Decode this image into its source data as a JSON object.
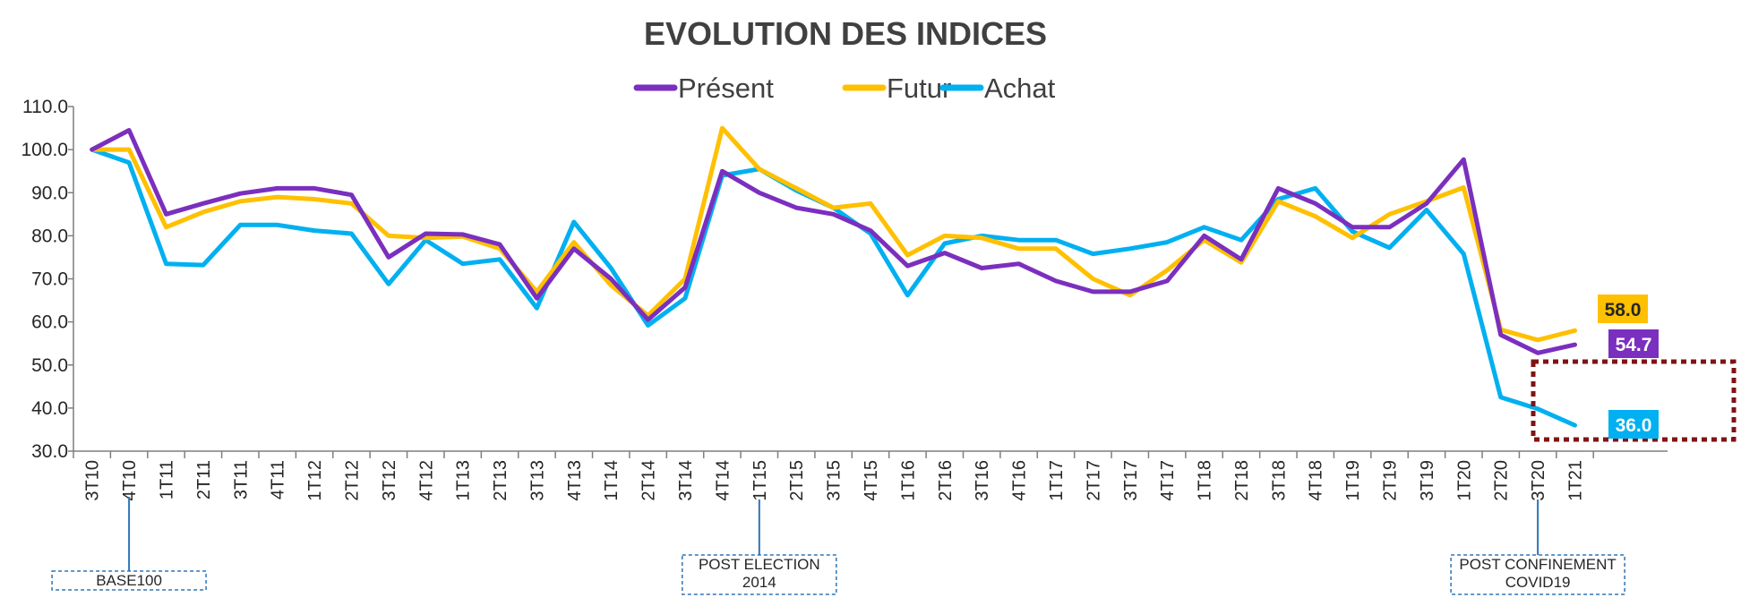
{
  "chart_data": {
    "type": "line",
    "title": "EVOLUTION DES INDICES",
    "xlabel": "",
    "ylabel": "",
    "ylim": [
      30,
      110
    ],
    "yticks": [
      "30.0",
      "40.0",
      "50.0",
      "60.0",
      "70.0",
      "80.0",
      "90.0",
      "100.0",
      "110.0"
    ],
    "categories": [
      "3T10",
      "4T10",
      "1T11",
      "2T11",
      "3T11",
      "4T11",
      "1T12",
      "2T12",
      "3T12",
      "4T12",
      "1T13",
      "2T13",
      "3T13",
      "4T13",
      "1T14",
      "2T14",
      "3T14",
      "4T14",
      "1T15",
      "2T15",
      "3T15",
      "4T15",
      "1T16",
      "2T16",
      "3T16",
      "4T16",
      "1T17",
      "2T17",
      "3T17",
      "4T17",
      "1T18",
      "2T18",
      "3T18",
      "4T18",
      "1T19",
      "2T19",
      "3T19",
      "1T20",
      "2T20",
      "3T20",
      "1T21"
    ],
    "legend_position": "top-center",
    "series": [
      {
        "name": "Présent",
        "color": "#7B2FBE",
        "values": [
          100,
          104.5,
          85,
          87.5,
          89.8,
          91,
          91,
          89.5,
          75,
          80.5,
          80.3,
          78,
          65.5,
          77,
          70,
          60.5,
          68,
          95,
          90,
          86.5,
          85,
          81.2,
          73,
          76,
          72.5,
          73.5,
          69.5,
          67,
          67,
          69.5,
          80,
          74.5,
          91,
          87.5,
          82,
          82,
          87.5,
          97.7,
          57,
          52.8,
          54.7
        ]
      },
      {
        "name": "Futur",
        "color": "#FFC000",
        "values": [
          100,
          100,
          82,
          85.5,
          88,
          89,
          88.5,
          87.5,
          80,
          79.5,
          79.8,
          77,
          67,
          78.5,
          68.5,
          61.5,
          70,
          105,
          95.5,
          91,
          86.5,
          87.5,
          75.5,
          80,
          79.5,
          77,
          77,
          70,
          66.2,
          72,
          79,
          73.8,
          88,
          84.5,
          79.5,
          85,
          88,
          91.2,
          58.2,
          55.8,
          58
        ]
      },
      {
        "name": "Achat",
        "color": "#00B0F0",
        "values": [
          100,
          97,
          73.5,
          73.2,
          82.5,
          82.5,
          81.2,
          80.5,
          68.8,
          79,
          73.5,
          74.5,
          63.2,
          83.2,
          72.5,
          59.2,
          65.5,
          94,
          95.5,
          90.5,
          86.5,
          80.5,
          66.2,
          78.2,
          80,
          79,
          79,
          75.8,
          77,
          78.5,
          82,
          79,
          88.5,
          91,
          81,
          77.2,
          86,
          75.8,
          42.5,
          39.8,
          36
        ]
      }
    ],
    "end_labels": [
      {
        "series": "Futur",
        "text": "58.0",
        "bg": "#FFC000",
        "fg": "#262626"
      },
      {
        "series": "Présent",
        "text": "54.7",
        "bg": "#7B2FBE",
        "fg": "#ffffff"
      },
      {
        "series": "Achat",
        "text": "36.0",
        "bg": "#00B0F0",
        "fg": "#ffffff"
      }
    ],
    "annotations": [
      {
        "category": "4T10",
        "lines": [
          "BASE100"
        ]
      },
      {
        "category": "1T15",
        "lines": [
          "POST ELECTION",
          "2014"
        ]
      },
      {
        "category": "3T20",
        "lines": [
          "POST CONFINEMENT",
          "COVID19"
        ]
      }
    ]
  }
}
